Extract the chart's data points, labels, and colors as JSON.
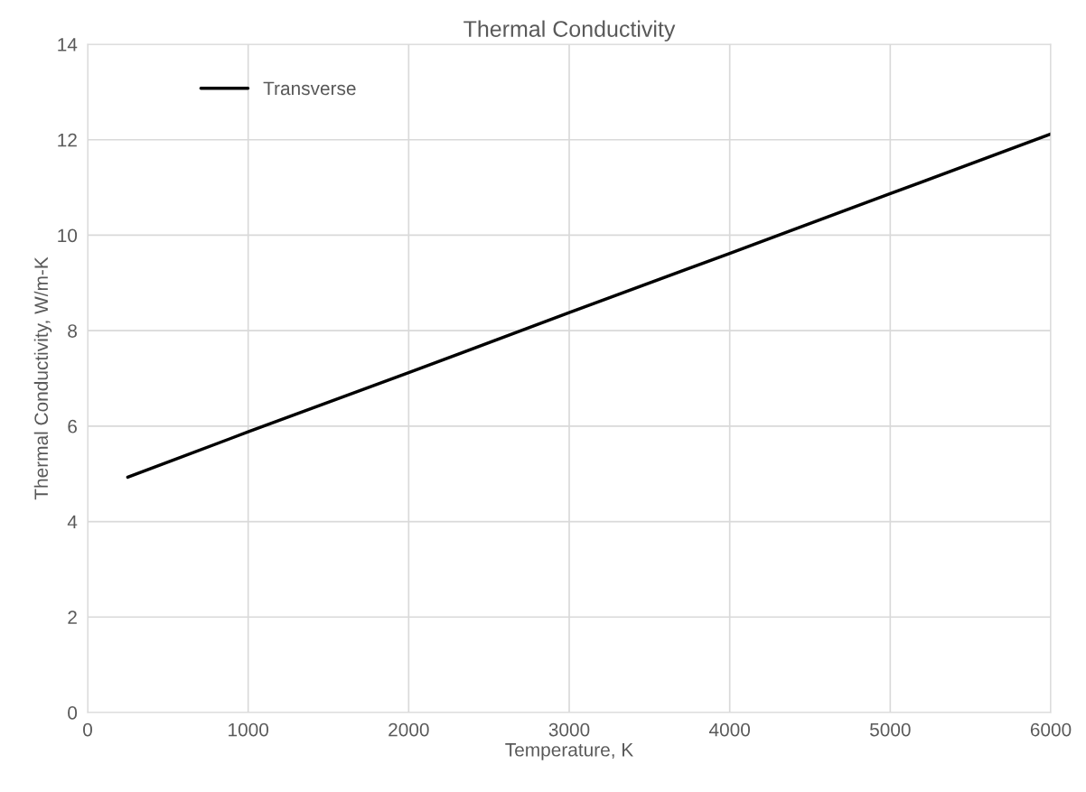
{
  "chart_data": {
    "type": "line",
    "title": "Thermal Conductivity",
    "xlabel": "Temperature, K",
    "ylabel": "Thermal Conductivity, W/m-K",
    "series": [
      {
        "name": "Transverse",
        "color": "#000000",
        "x": [
          250,
          1000,
          2000,
          3000,
          4000,
          5000,
          6000
        ],
        "values": [
          4.93,
          5.88,
          7.12,
          8.38,
          9.62,
          10.87,
          12.12
        ]
      }
    ],
    "xlim": [
      0,
      6000
    ],
    "xticks": [
      0,
      1000,
      2000,
      3000,
      4000,
      5000,
      6000
    ],
    "ylim": [
      0,
      14
    ],
    "yticks": [
      0,
      2,
      4,
      6,
      8,
      10,
      12,
      14
    ],
    "grid": true,
    "legend": "top left",
    "marker": "none",
    "line_style": "solid"
  }
}
